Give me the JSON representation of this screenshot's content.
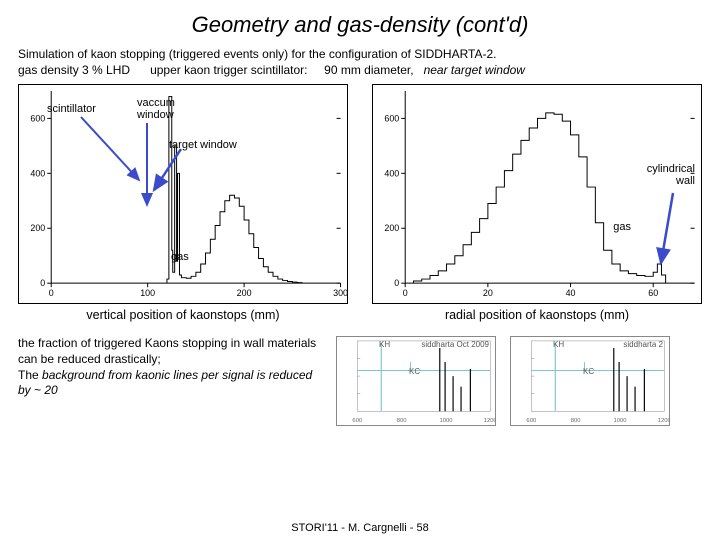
{
  "title": "Geometry and gas-density  (cont'd)",
  "subtitle_line1": "Simulation of kaon stopping (triggered events only) for the configuration of SIDDHARTA-2.",
  "subtitle_line2a": "gas density  3 % LHD",
  "subtitle_line2b": "upper kaon trigger scintillator:",
  "subtitle_line2c": "90 mm diameter,",
  "subtitle_line2d": "near target window",
  "left_chart": {
    "xmin": 0,
    "xmax": 300,
    "ymin": 0,
    "ymax": 700,
    "xticks": [
      0,
      100,
      200,
      300
    ],
    "yticks": [
      0,
      200,
      400,
      600
    ],
    "series": [
      {
        "x": 120,
        "y": 15
      },
      {
        "x": 122,
        "y": 680
      },
      {
        "x": 125,
        "y": 120
      },
      {
        "x": 126,
        "y": 40
      },
      {
        "x": 128,
        "y": 500
      },
      {
        "x": 130,
        "y": 80
      },
      {
        "x": 131,
        "y": 400
      },
      {
        "x": 133,
        "y": 30
      },
      {
        "x": 135,
        "y": 20
      },
      {
        "x": 140,
        "y": 18
      },
      {
        "x": 145,
        "y": 25
      },
      {
        "x": 150,
        "y": 40
      },
      {
        "x": 155,
        "y": 70
      },
      {
        "x": 160,
        "y": 110
      },
      {
        "x": 165,
        "y": 160
      },
      {
        "x": 170,
        "y": 210
      },
      {
        "x": 175,
        "y": 260
      },
      {
        "x": 180,
        "y": 300
      },
      {
        "x": 185,
        "y": 320
      },
      {
        "x": 190,
        "y": 310
      },
      {
        "x": 195,
        "y": 280
      },
      {
        "x": 200,
        "y": 230
      },
      {
        "x": 205,
        "y": 180
      },
      {
        "x": 210,
        "y": 130
      },
      {
        "x": 215,
        "y": 90
      },
      {
        "x": 220,
        "y": 60
      },
      {
        "x": 225,
        "y": 40
      },
      {
        "x": 230,
        "y": 25
      },
      {
        "x": 235,
        "y": 15
      },
      {
        "x": 240,
        "y": 10
      },
      {
        "x": 245,
        "y": 6
      },
      {
        "x": 250,
        "y": 4
      },
      {
        "x": 255,
        "y": 2
      },
      {
        "x": 260,
        "y": 1
      }
    ],
    "annotations": {
      "scintillator": "scintillator",
      "vaccum_window": "vaccum\nwindow",
      "target_window": "target window",
      "gas": "gas"
    },
    "caption": "vertical position of kaonstops (mm)",
    "arrow_color": "#3a4bcc"
  },
  "right_chart": {
    "xmin": 0,
    "xmax": 70,
    "ymin": 0,
    "ymax": 700,
    "xticks": [
      0,
      20,
      40,
      60
    ],
    "yticks": [
      0,
      200,
      400,
      600
    ],
    "series": [
      {
        "x": 2,
        "y": 8
      },
      {
        "x": 4,
        "y": 15
      },
      {
        "x": 6,
        "y": 28
      },
      {
        "x": 8,
        "y": 45
      },
      {
        "x": 10,
        "y": 70
      },
      {
        "x": 12,
        "y": 100
      },
      {
        "x": 14,
        "y": 140
      },
      {
        "x": 16,
        "y": 185
      },
      {
        "x": 18,
        "y": 235
      },
      {
        "x": 20,
        "y": 290
      },
      {
        "x": 22,
        "y": 350
      },
      {
        "x": 24,
        "y": 410
      },
      {
        "x": 26,
        "y": 470
      },
      {
        "x": 28,
        "y": 520
      },
      {
        "x": 30,
        "y": 565
      },
      {
        "x": 32,
        "y": 600
      },
      {
        "x": 34,
        "y": 620
      },
      {
        "x": 36,
        "y": 615
      },
      {
        "x": 38,
        "y": 590
      },
      {
        "x": 40,
        "y": 540
      },
      {
        "x": 42,
        "y": 460
      },
      {
        "x": 44,
        "y": 350
      },
      {
        "x": 46,
        "y": 220
      },
      {
        "x": 48,
        "y": 120
      },
      {
        "x": 50,
        "y": 70
      },
      {
        "x": 52,
        "y": 45
      },
      {
        "x": 54,
        "y": 35
      },
      {
        "x": 56,
        "y": 28
      },
      {
        "x": 58,
        "y": 25
      },
      {
        "x": 60,
        "y": 40
      },
      {
        "x": 61,
        "y": 70
      },
      {
        "x": 62,
        "y": 30
      },
      {
        "x": 63,
        "y": 15
      }
    ],
    "annotations": {
      "cylindrical_wall": "cylindrical\nwall",
      "gas": "gas"
    },
    "caption": "radial position of kaonstops (mm)",
    "arrow_color": "#3a4bcc"
  },
  "mini_left": {
    "label_top": "KH",
    "label_right": "siddharta",
    "label_date": "Oct 2009",
    "label_mid": "KC",
    "xticks": [
      "600",
      "800",
      "1000",
      "1200"
    ],
    "line_color": "#7cc9c9"
  },
  "mini_right": {
    "label_top": "KH",
    "label_right": "siddharta 2",
    "label_mid": "KC",
    "xticks": [
      "600",
      "800",
      "1000",
      "1200"
    ],
    "line_color": "#7cc9c9"
  },
  "bottom_text_1": "the fraction of  triggered Kaons stopping in wall materials can be reduced drastically;",
  "bottom_text_2a": "The ",
  "bottom_text_2b": "background from  kaonic lines per signal is reduced by ~ 20",
  "footer": "STORI'11 - M. Cargnelli - 58",
  "colors": {
    "axis": "#000000",
    "histogram": "#000000",
    "arrow": "#3a4bcc",
    "mini_accent": "#7cc9c9"
  }
}
